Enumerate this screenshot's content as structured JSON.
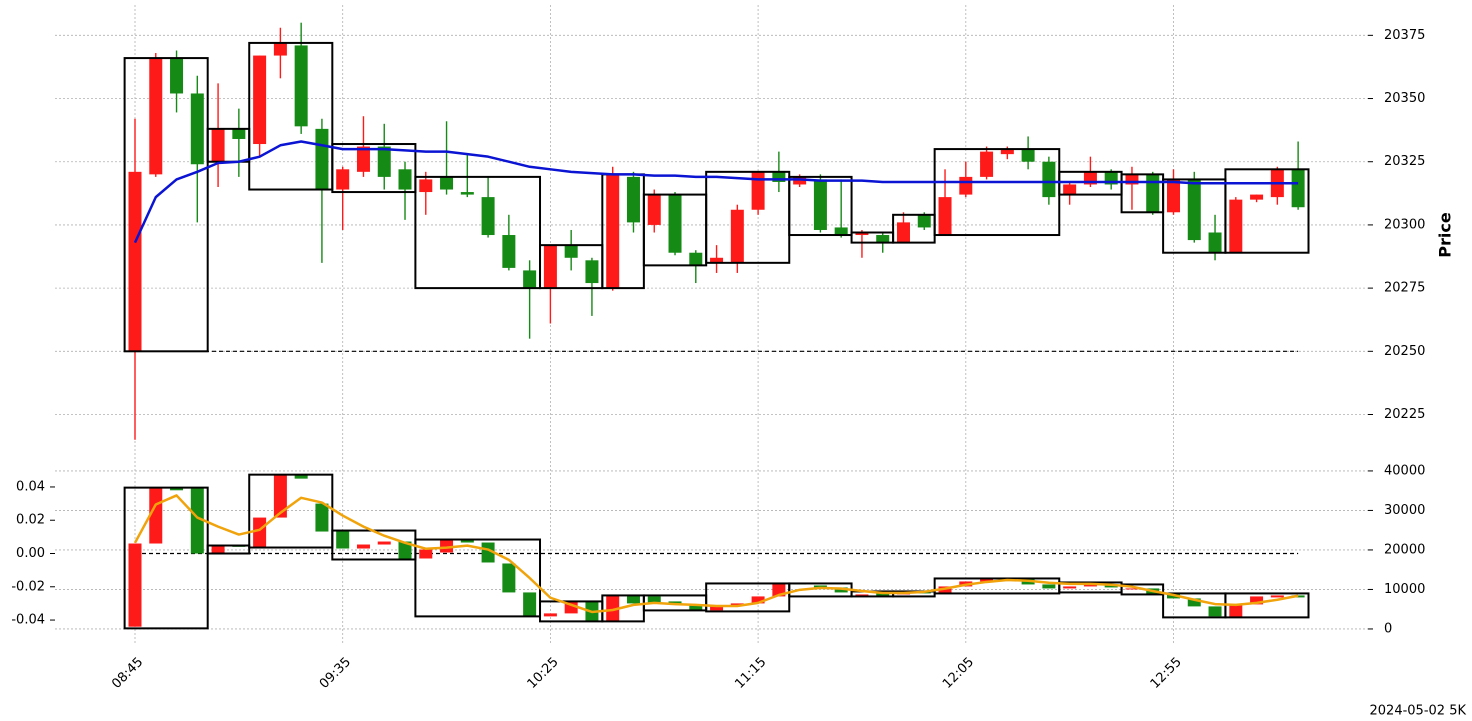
{
  "chart_data": [
    {
      "type": "candlestick",
      "ylabel": "Price",
      "ylim": [
        20207,
        20387
      ],
      "yticks": [
        20225,
        20250,
        20275,
        20300,
        20325,
        20350,
        20375
      ],
      "grid": true,
      "up_color": "#ff1a1a",
      "down_color": "#158a15",
      "open": [
        20250,
        20320,
        20366,
        20352,
        20325,
        20338,
        20332,
        20367,
        20371,
        20338,
        20314,
        20321,
        20331,
        20322,
        20313,
        20319,
        20313,
        20311,
        20296,
        20282,
        20275,
        20292,
        20286,
        20275,
        20319,
        20300,
        20312,
        20289,
        20285,
        20285,
        20306,
        20321,
        20316,
        20318,
        20299,
        20296,
        20296,
        20293,
        20304,
        20296,
        20312,
        20319,
        20328,
        20330,
        20325,
        20312,
        20316,
        20321,
        20316,
        20320,
        20305,
        20318,
        20297,
        20289,
        20310,
        20311,
        20322
      ],
      "high": [
        20342,
        20368,
        20369,
        20359,
        20356,
        20346,
        20367,
        20378,
        20380,
        20342,
        20323,
        20343,
        20340,
        20325,
        20321,
        20341,
        20328,
        20319,
        20304,
        20286,
        20292,
        20298,
        20287,
        20323,
        20321,
        20314,
        20313,
        20290,
        20292,
        20308,
        20321,
        20329,
        20320,
        20320,
        20318,
        20298,
        20297,
        20305,
        20305,
        20322,
        20325,
        20331,
        20331,
        20335,
        20327,
        20317,
        20327,
        20322,
        20323,
        20321,
        20322,
        20321,
        20304,
        20311,
        20312,
        20323,
        20333
      ],
      "low": [
        20215,
        20319,
        20344.5,
        20301,
        20315,
        20319,
        20327,
        20358,
        20336,
        20285,
        20298,
        20319,
        20314,
        20302,
        20304,
        20312,
        20311,
        20295,
        20282,
        20255,
        20261,
        20282,
        20264,
        20274,
        20297,
        20297,
        20288,
        20277,
        20281,
        20281,
        20304,
        20313,
        20315,
        20297,
        20295,
        20287,
        20289,
        20293,
        20298,
        20296,
        20311,
        20318,
        20326,
        20322,
        20308,
        20308,
        20315,
        20314,
        20306,
        20304,
        20304,
        20293,
        20286,
        20289,
        20309,
        20308,
        20306
      ],
      "close": [
        20321,
        20366,
        20352,
        20324,
        20338,
        20334,
        20367,
        20372,
        20339,
        20314,
        20322,
        20331,
        20319,
        20314,
        20318,
        20314,
        20312,
        20296,
        20283,
        20275,
        20292,
        20287,
        20277,
        20320,
        20301,
        20312,
        20289,
        20284,
        20287,
        20306,
        20321,
        20317,
        20319,
        20298,
        20296,
        20297,
        20293,
        20301,
        20299,
        20311,
        20319,
        20329,
        20330,
        20325,
        20311,
        20316,
        20321,
        20316,
        20320,
        20305,
        20318,
        20294,
        20289,
        20310,
        20312,
        20322,
        20307
      ],
      "line": {
        "color": "#0a14d2",
        "values": [
          20293,
          20311,
          20318,
          20321,
          20324.5,
          20325,
          20327,
          20331.5,
          20333,
          20331.5,
          20330,
          20330,
          20330,
          20329.5,
          20329,
          20329,
          20328,
          20327,
          20325,
          20323,
          20322,
          20321,
          20320.5,
          20320,
          20320,
          20319.5,
          20319.5,
          20319,
          20319,
          20318.5,
          20318,
          20318,
          20318,
          20317.5,
          20317.5,
          20317.5,
          20317,
          20317,
          20317,
          20317,
          20317,
          20317,
          20317,
          20317,
          20317,
          20317,
          20317,
          20317,
          20317,
          20317,
          20317,
          20316.5,
          20316.5,
          20316.5,
          20316.5,
          20316.5,
          20316.5
        ]
      },
      "hline": 20250,
      "boxes": [
        {
          "start": 0,
          "end": 3,
          "low": 20250,
          "high": 20366
        },
        {
          "start": 4,
          "end": 5,
          "low": 20325,
          "high": 20338
        },
        {
          "start": 6,
          "end": 9,
          "low": 20314,
          "high": 20372
        },
        {
          "start": 10,
          "end": 13,
          "low": 20313,
          "high": 20332
        },
        {
          "start": 14,
          "end": 19,
          "low": 20275,
          "high": 20319
        },
        {
          "start": 20,
          "end": 22,
          "low": 20275,
          "high": 20292
        },
        {
          "start": 23,
          "end": 24,
          "low": 20275,
          "high": 20320
        },
        {
          "start": 25,
          "end": 27,
          "low": 20284,
          "high": 20312
        },
        {
          "start": 28,
          "end": 31,
          "low": 20285,
          "high": 20321
        },
        {
          "start": 32,
          "end": 34,
          "low": 20296,
          "high": 20319
        },
        {
          "start": 35,
          "end": 36,
          "low": 20293,
          "high": 20297
        },
        {
          "start": 37,
          "end": 38,
          "low": 20293,
          "high": 20304
        },
        {
          "start": 39,
          "end": 44,
          "low": 20296,
          "high": 20330
        },
        {
          "start": 45,
          "end": 47,
          "low": 20312,
          "high": 20321
        },
        {
          "start": 48,
          "end": 49,
          "low": 20305,
          "high": 20320
        },
        {
          "start": 50,
          "end": 52,
          "low": 20289,
          "high": 20318
        },
        {
          "start": 53,
          "end": 56,
          "low": 20289,
          "high": 20322
        }
      ]
    },
    {
      "type": "candlestick",
      "annotation": "2024-05-02 5K",
      "categories": [
        "08:45",
        null,
        null,
        null,
        null,
        null,
        null,
        null,
        null,
        null,
        "09:35",
        null,
        null,
        null,
        null,
        null,
        null,
        null,
        null,
        null,
        "10:25",
        null,
        null,
        null,
        null,
        null,
        null,
        null,
        null,
        null,
        "11:15",
        null,
        null,
        null,
        null,
        null,
        null,
        null,
        null,
        null,
        "12:05",
        null,
        null,
        null,
        null,
        null,
        null,
        null,
        null,
        null,
        "12:55",
        null,
        null,
        null,
        null,
        null,
        null
      ],
      "ylim": [
        -0.055,
        0.0532
      ],
      "yticks": [
        -0.04,
        -0.02,
        {
          "value": 0,
          "label": "0.00"
        },
        0.02,
        0.04
      ],
      "y2lim": [
        -4060,
        41500
      ],
      "y2ticks": [
        0,
        10000,
        20000,
        30000,
        40000
      ],
      "grid": true,
      "up_color": "#ff1a1a",
      "down_color": "#158a15",
      "open": [
        -0.044,
        0.006,
        0.0396,
        0.0396,
        0,
        0.0048,
        0.0036,
        0.0216,
        0.0474,
        0.03,
        0.0138,
        0.003,
        0.0054,
        0.0072,
        -0.003,
        0.0006,
        0.0084,
        0.0066,
        -0.006,
        -0.0234,
        -0.0378,
        -0.036,
        -0.0288,
        -0.0408,
        -0.0252,
        -0.0258,
        -0.0288,
        -0.0306,
        -0.0342,
        -0.0312,
        -0.03,
        -0.0258,
        -0.018,
        -0.0192,
        -0.0204,
        -0.0258,
        -0.024,
        -0.0246,
        -0.0234,
        -0.024,
        -0.0198,
        -0.0168,
        -0.0156,
        -0.015,
        -0.0186,
        -0.021,
        -0.0198,
        -0.0186,
        -0.0216,
        -0.021,
        -0.024,
        -0.027,
        -0.0318,
        -0.0384,
        -0.0306,
        -0.0264,
        -0.0252
      ],
      "close": [
        0.006,
        0.0396,
        0.038,
        0,
        0.0048,
        0.004,
        0.0216,
        0.0474,
        0.045,
        0.0132,
        0.003,
        0.0054,
        0.0072,
        -0.0036,
        0.0024,
        0.0084,
        0.0066,
        -0.0054,
        -0.0234,
        -0.0378,
        -0.036,
        -0.0288,
        -0.0408,
        -0.0252,
        -0.03,
        -0.03,
        -0.0306,
        -0.0342,
        -0.0312,
        -0.03,
        -0.0258,
        -0.018,
        -0.0186,
        -0.0204,
        -0.0234,
        -0.0246,
        -0.0258,
        -0.0234,
        -0.024,
        -0.0198,
        -0.0168,
        -0.015,
        -0.015,
        -0.0186,
        -0.021,
        -0.0198,
        -0.0186,
        -0.0204,
        -0.021,
        -0.0246,
        -0.027,
        -0.0318,
        -0.0378,
        -0.0306,
        -0.0258,
        -0.0252,
        -0.0264
      ],
      "line": {
        "color": "#f0a30a",
        "axis": "y2",
        "values": [
          21800,
          31500,
          33800,
          28200,
          25900,
          23900,
          25100,
          29400,
          33200,
          32000,
          28700,
          25900,
          23600,
          21800,
          20300,
          20600,
          21100,
          20100,
          17500,
          12900,
          7900,
          6100,
          4300,
          4800,
          6100,
          6600,
          6300,
          6100,
          5800,
          5800,
          6600,
          8600,
          9900,
          10400,
          10200,
          9600,
          9100,
          9100,
          9400,
          10200,
          11200,
          11900,
          12400,
          12200,
          11700,
          11400,
          11400,
          11200,
          10700,
          9600,
          8600,
          7400,
          6300,
          6100,
          6600,
          7400,
          8400
        ]
      },
      "hline": 0,
      "boxes": [
        {
          "start": 0,
          "end": 3,
          "low": -0.045,
          "high": 0.0396
        },
        {
          "start": 4,
          "end": 5,
          "low": 0,
          "high": 0.0048
        },
        {
          "start": 6,
          "end": 9,
          "low": 0.0036,
          "high": 0.0474
        },
        {
          "start": 10,
          "end": 13,
          "low": -0.0036,
          "high": 0.0138
        },
        {
          "start": 14,
          "end": 19,
          "low": -0.0378,
          "high": 0.0084
        },
        {
          "start": 20,
          "end": 22,
          "low": -0.0408,
          "high": -0.0288
        },
        {
          "start": 23,
          "end": 24,
          "low": -0.0408,
          "high": -0.0252
        },
        {
          "start": 25,
          "end": 27,
          "low": -0.0342,
          "high": -0.0252
        },
        {
          "start": 28,
          "end": 31,
          "low": -0.0348,
          "high": -0.018
        },
        {
          "start": 32,
          "end": 34,
          "low": -0.0258,
          "high": -0.018
        },
        {
          "start": 35,
          "end": 36,
          "low": -0.0258,
          "high": -0.0228
        },
        {
          "start": 37,
          "end": 38,
          "low": -0.0258,
          "high": -0.0228
        },
        {
          "start": 39,
          "end": 44,
          "low": -0.024,
          "high": -0.015
        },
        {
          "start": 45,
          "end": 47,
          "low": -0.0234,
          "high": -0.0174
        },
        {
          "start": 48,
          "end": 49,
          "low": -0.0246,
          "high": -0.0186
        },
        {
          "start": 50,
          "end": 52,
          "low": -0.0384,
          "high": -0.024
        },
        {
          "start": 53,
          "end": 56,
          "low": -0.0384,
          "high": -0.024
        }
      ]
    }
  ]
}
